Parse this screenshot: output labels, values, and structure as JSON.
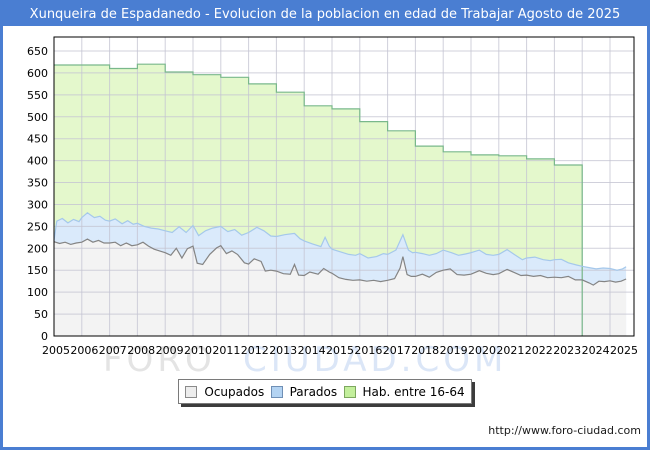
{
  "window": {
    "title": "Xunqueira de Espadanedo - Evolucion de la poblacion en edad de Trabajar Agosto de 2025",
    "url": "http://www.foro-ciudad.com"
  },
  "watermark": {
    "part1": "FORO",
    "part2": "CIUDAD.COM"
  },
  "legend": {
    "items": [
      {
        "label": "Ocupados",
        "swatch_color": "#ededed",
        "swatch_border": "#8a8a8a"
      },
      {
        "label": "Parados",
        "swatch_color": "#b3d3f2",
        "swatch_border": "#6f8fb5"
      },
      {
        "label": "Hab. entre 16-64",
        "swatch_color": "#c3ef9c",
        "swatch_border": "#7da75f"
      }
    ]
  },
  "chart_data": {
    "type": "area",
    "title": "Xunqueira de Espadanedo - Evolucion de la poblacion en edad de Trabajar Agosto de 2025",
    "xlabel": "",
    "ylabel": "",
    "x_axis": {
      "ticks": [
        2005,
        2006,
        2007,
        2008,
        2009,
        2010,
        2011,
        2012,
        2013,
        2014,
        2015,
        2016,
        2017,
        2018,
        2019,
        2020,
        2021,
        2022,
        2023,
        2024,
        2025
      ]
    },
    "y_axis": {
      "min": 0,
      "max": 650,
      "step": 50,
      "tick_labels": [
        0,
        50,
        100,
        150,
        200,
        250,
        300,
        350,
        400,
        450,
        500,
        550,
        600,
        650
      ]
    },
    "grid": true,
    "legend_position": "bottom",
    "stacking_note": "Areas overlap: green = total 16-64, blue upper line = Ocupados+Parados, grey line = Ocupados",
    "series": [
      {
        "name": "Hab. entre 16-64",
        "mode": "step-annual",
        "fill": "#e4f8cc",
        "line": "#79b88b",
        "years": [
          2005,
          2006,
          2007,
          2008,
          2009,
          2010,
          2011,
          2012,
          2013,
          2014,
          2015,
          2016,
          2017,
          2018,
          2019,
          2020,
          2021,
          2022,
          2023
        ],
        "values": [
          618,
          618,
          610,
          620,
          602,
          596,
          590,
          575,
          556,
          525,
          518,
          489,
          468,
          433,
          420,
          413,
          411,
          404,
          390
        ],
        "ends_at": 2024.0
      },
      {
        "name": "Parados (limite superior: Ocupados+Parados)",
        "mode": "line",
        "fill": "#daeafb",
        "line": "#a5c8eb",
        "points": [
          [
            2005.0,
            218
          ],
          [
            2005.1,
            262
          ],
          [
            2005.3,
            268
          ],
          [
            2005.5,
            258
          ],
          [
            2005.7,
            266
          ],
          [
            2005.9,
            261
          ],
          [
            2006.0,
            270
          ],
          [
            2006.2,
            281
          ],
          [
            2006.45,
            270
          ],
          [
            2006.65,
            273
          ],
          [
            2006.85,
            264
          ],
          [
            2007.0,
            262
          ],
          [
            2007.2,
            267
          ],
          [
            2007.45,
            256
          ],
          [
            2007.65,
            263
          ],
          [
            2007.85,
            255
          ],
          [
            2008.0,
            257
          ],
          [
            2008.25,
            250
          ],
          [
            2008.5,
            246
          ],
          [
            2008.75,
            244
          ],
          [
            2009.0,
            240
          ],
          [
            2009.25,
            236
          ],
          [
            2009.5,
            249
          ],
          [
            2009.75,
            236
          ],
          [
            2010.0,
            252
          ],
          [
            2010.2,
            229
          ],
          [
            2010.45,
            240
          ],
          [
            2010.7,
            246
          ],
          [
            2011.0,
            250
          ],
          [
            2011.25,
            238
          ],
          [
            2011.5,
            243
          ],
          [
            2011.75,
            230
          ],
          [
            2012.0,
            236
          ],
          [
            2012.3,
            248
          ],
          [
            2012.55,
            240
          ],
          [
            2012.8,
            228
          ],
          [
            2013.0,
            227
          ],
          [
            2013.3,
            231
          ],
          [
            2013.65,
            234
          ],
          [
            2013.85,
            222
          ],
          [
            2014.0,
            217
          ],
          [
            2014.3,
            210
          ],
          [
            2014.6,
            204
          ],
          [
            2014.75,
            225
          ],
          [
            2014.9,
            205
          ],
          [
            2015.0,
            198
          ],
          [
            2015.3,
            192
          ],
          [
            2015.6,
            186
          ],
          [
            2015.85,
            184
          ],
          [
            2016.0,
            188
          ],
          [
            2016.3,
            178
          ],
          [
            2016.6,
            181
          ],
          [
            2016.85,
            188
          ],
          [
            2017.0,
            186
          ],
          [
            2017.3,
            196
          ],
          [
            2017.55,
            231
          ],
          [
            2017.75,
            196
          ],
          [
            2017.9,
            190
          ],
          [
            2018.0,
            191
          ],
          [
            2018.25,
            188
          ],
          [
            2018.5,
            184
          ],
          [
            2018.75,
            188
          ],
          [
            2019.0,
            196
          ],
          [
            2019.3,
            190
          ],
          [
            2019.55,
            184
          ],
          [
            2019.8,
            187
          ],
          [
            2020.0,
            190
          ],
          [
            2020.3,
            196
          ],
          [
            2020.55,
            186
          ],
          [
            2020.8,
            184
          ],
          [
            2021.0,
            186
          ],
          [
            2021.3,
            197
          ],
          [
            2021.6,
            184
          ],
          [
            2021.85,
            174
          ],
          [
            2022.0,
            178
          ],
          [
            2022.3,
            180
          ],
          [
            2022.6,
            174
          ],
          [
            2022.85,
            172
          ],
          [
            2023.0,
            174
          ],
          [
            2023.25,
            175
          ],
          [
            2023.5,
            167
          ],
          [
            2023.8,
            162
          ],
          [
            2024.0,
            159
          ],
          [
            2024.25,
            156
          ],
          [
            2024.5,
            153
          ],
          [
            2024.75,
            155
          ],
          [
            2025.0,
            154
          ],
          [
            2025.25,
            150
          ],
          [
            2025.45,
            153
          ],
          [
            2025.58,
            158
          ]
        ]
      },
      {
        "name": "Ocupados",
        "mode": "line",
        "fill": "#f3f3f3",
        "line": "#848484",
        "points": [
          [
            2005.0,
            215
          ],
          [
            2005.2,
            211
          ],
          [
            2005.4,
            214
          ],
          [
            2005.6,
            209
          ],
          [
            2005.8,
            212
          ],
          [
            2006.0,
            214
          ],
          [
            2006.2,
            221
          ],
          [
            2006.4,
            214
          ],
          [
            2006.6,
            218
          ],
          [
            2006.8,
            212
          ],
          [
            2007.0,
            212
          ],
          [
            2007.2,
            214
          ],
          [
            2007.4,
            206
          ],
          [
            2007.6,
            212
          ],
          [
            2007.8,
            206
          ],
          [
            2008.0,
            208
          ],
          [
            2008.2,
            214
          ],
          [
            2008.4,
            205
          ],
          [
            2008.6,
            198
          ],
          [
            2008.8,
            194
          ],
          [
            2009.0,
            190
          ],
          [
            2009.2,
            184
          ],
          [
            2009.4,
            200
          ],
          [
            2009.6,
            178
          ],
          [
            2009.8,
            199
          ],
          [
            2010.0,
            205
          ],
          [
            2010.15,
            166
          ],
          [
            2010.35,
            163
          ],
          [
            2010.6,
            186
          ],
          [
            2010.85,
            201
          ],
          [
            2011.0,
            206
          ],
          [
            2011.2,
            188
          ],
          [
            2011.4,
            194
          ],
          [
            2011.6,
            186
          ],
          [
            2011.85,
            167
          ],
          [
            2012.0,
            164
          ],
          [
            2012.2,
            176
          ],
          [
            2012.45,
            170
          ],
          [
            2012.6,
            148
          ],
          [
            2012.8,
            150
          ],
          [
            2013.0,
            148
          ],
          [
            2013.25,
            142
          ],
          [
            2013.5,
            141
          ],
          [
            2013.65,
            163
          ],
          [
            2013.8,
            139
          ],
          [
            2014.0,
            138
          ],
          [
            2014.2,
            146
          ],
          [
            2014.5,
            141
          ],
          [
            2014.7,
            154
          ],
          [
            2014.9,
            146
          ],
          [
            2015.0,
            143
          ],
          [
            2015.25,
            133
          ],
          [
            2015.5,
            129
          ],
          [
            2015.75,
            127
          ],
          [
            2016.0,
            128
          ],
          [
            2016.25,
            125
          ],
          [
            2016.5,
            127
          ],
          [
            2016.75,
            124
          ],
          [
            2017.0,
            127
          ],
          [
            2017.25,
            131
          ],
          [
            2017.45,
            155
          ],
          [
            2017.55,
            181
          ],
          [
            2017.7,
            140
          ],
          [
            2017.85,
            136
          ],
          [
            2018.0,
            136
          ],
          [
            2018.25,
            141
          ],
          [
            2018.5,
            134
          ],
          [
            2018.75,
            145
          ],
          [
            2019.0,
            150
          ],
          [
            2019.25,
            153
          ],
          [
            2019.5,
            140
          ],
          [
            2019.75,
            139
          ],
          [
            2020.0,
            141
          ],
          [
            2020.3,
            149
          ],
          [
            2020.55,
            143
          ],
          [
            2020.8,
            140
          ],
          [
            2021.0,
            142
          ],
          [
            2021.3,
            152
          ],
          [
            2021.55,
            145
          ],
          [
            2021.8,
            138
          ],
          [
            2022.0,
            139
          ],
          [
            2022.25,
            136
          ],
          [
            2022.5,
            138
          ],
          [
            2022.75,
            133
          ],
          [
            2023.0,
            134
          ],
          [
            2023.25,
            133
          ],
          [
            2023.5,
            136
          ],
          [
            2023.75,
            128
          ],
          [
            2024.0,
            128
          ],
          [
            2024.25,
            121
          ],
          [
            2024.4,
            116
          ],
          [
            2024.6,
            125
          ],
          [
            2024.8,
            124
          ],
          [
            2025.0,
            126
          ],
          [
            2025.2,
            123
          ],
          [
            2025.4,
            125
          ],
          [
            2025.58,
            130
          ]
        ]
      }
    ],
    "colors": {
      "frame": "#4a7ed2",
      "grid": "#c4c4d2",
      "plot_border": "#000000",
      "watermark_gray": "#e4e4e4",
      "watermark_blue": "#dbe6f7"
    }
  }
}
